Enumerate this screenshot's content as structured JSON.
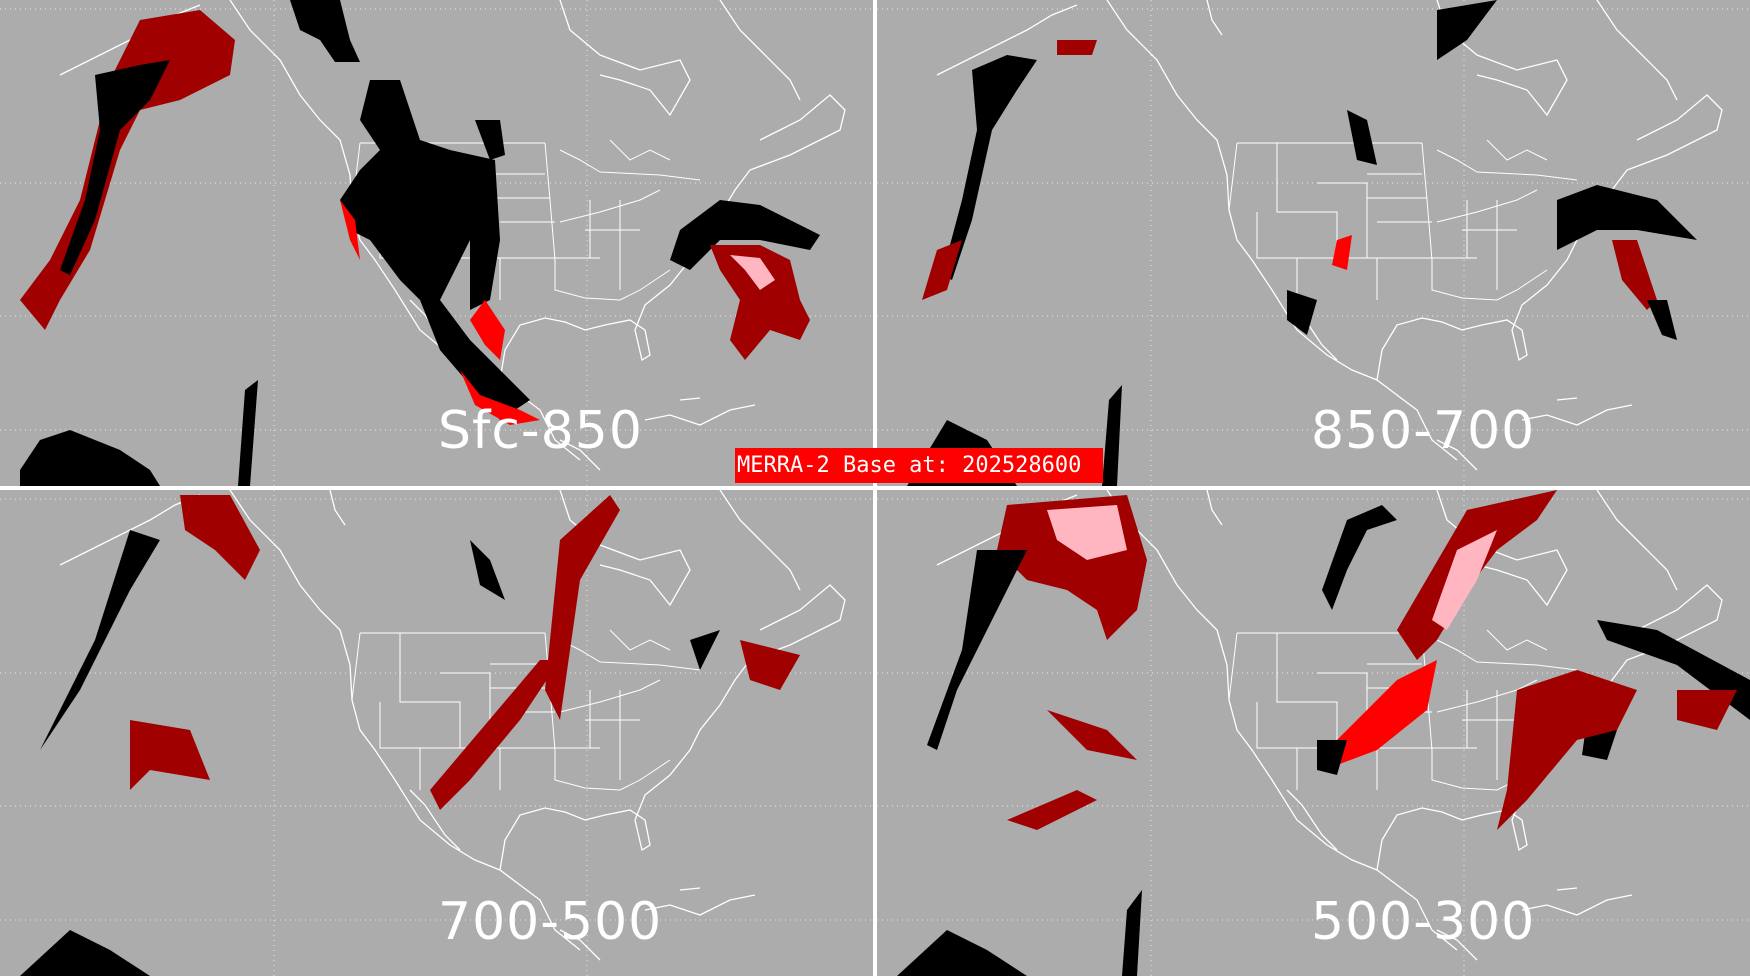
{
  "banner": {
    "text": "MERRA-2 Base at: 202528600",
    "color": "#ff0000"
  },
  "panels": [
    {
      "label": "Sfc-850"
    },
    {
      "label": "850-700"
    },
    {
      "label": "700-500"
    },
    {
      "label": "500-300"
    }
  ],
  "colors": {
    "background": "#acacac",
    "black": "#000000",
    "dark_red": "#a00000",
    "red": "#ff0000",
    "pink": "#ffb6c1",
    "outline": "#ffffff"
  }
}
